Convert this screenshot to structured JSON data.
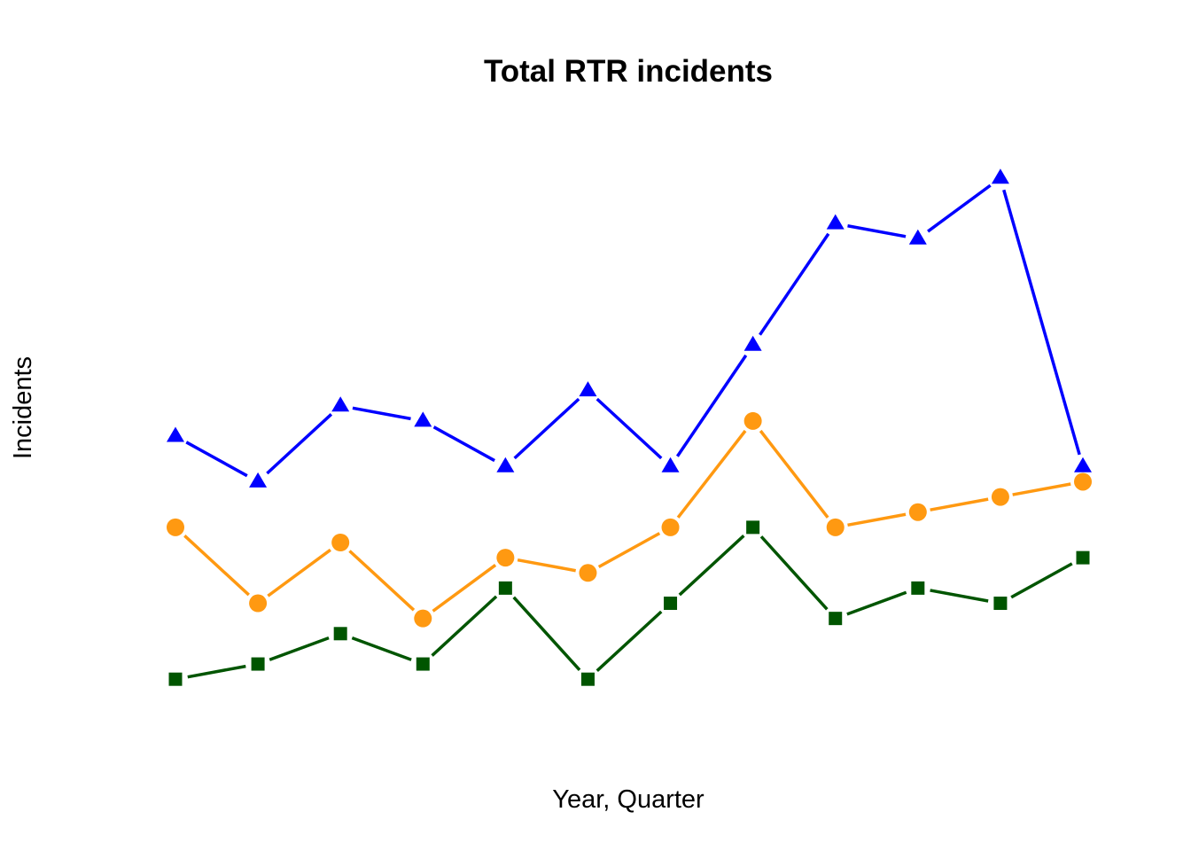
{
  "chart_data": {
    "type": "line",
    "title": "Total RTR incidents",
    "xlabel": "Year, Quarter",
    "ylabel": "Incidents",
    "x": [
      1,
      2,
      3,
      4,
      5,
      6,
      7,
      8,
      9,
      10,
      11,
      12
    ],
    "ylim": [
      0,
      45
    ],
    "grid": false,
    "legend": "none",
    "series": [
      {
        "color": "#0000ff",
        "marker": "triangle",
        "values": [
          22,
          19,
          24,
          23,
          20,
          25,
          20,
          28,
          36,
          35,
          39,
          20
        ]
      },
      {
        "color": "#ff9911",
        "marker": "circle",
        "values": [
          16,
          11,
          15,
          10,
          14,
          13,
          16,
          23,
          16,
          17,
          18,
          19
        ]
      },
      {
        "color": "#005500",
        "marker": "square",
        "values": [
          6,
          7,
          9,
          7,
          12,
          6,
          11,
          16,
          10,
          12,
          11,
          14
        ]
      }
    ]
  }
}
